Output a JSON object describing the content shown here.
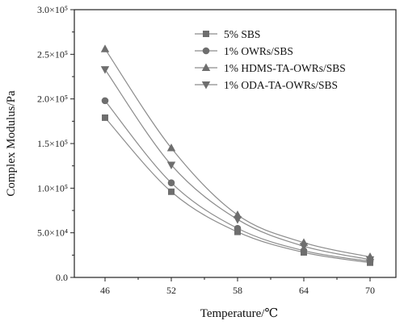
{
  "chart_data": {
    "type": "line",
    "title": "",
    "xlabel": "Temperature/℃",
    "ylabel": "Complex Modulus/Pa",
    "categories": [
      46,
      52,
      58,
      64,
      70
    ],
    "x_tick_labels": [
      "46",
      "52",
      "58",
      "64",
      "70"
    ],
    "ylim": [
      0,
      300000
    ],
    "y_ticks": [
      0,
      50000,
      100000,
      150000,
      200000,
      250000,
      300000
    ],
    "y_tick_labels": [
      "0.0",
      "5.0×10⁴",
      "1.0×10⁵",
      "1.5×10⁵",
      "2.0×10⁵",
      "2.5×10⁵",
      "3.0×10⁵"
    ],
    "grid": false,
    "legend_position": "top-right",
    "series": [
      {
        "name": "5% SBS",
        "marker": "square",
        "values": [
          179000,
          96000,
          51000,
          28000,
          16500
        ]
      },
      {
        "name": "1% OWRs/SBS",
        "marker": "circle",
        "values": [
          198000,
          106000,
          55000,
          30000,
          18000
        ]
      },
      {
        "name": "1% HDMS-TA-OWRs/SBS",
        "marker": "triangle-up",
        "values": [
          256000,
          145000,
          70000,
          39000,
          23000
        ]
      },
      {
        "name": "1% ODA-TA-OWRs/SBS",
        "marker": "triangle-down",
        "values": [
          233000,
          126000,
          65000,
          35000,
          20000
        ]
      }
    ],
    "colors": {
      "line": "#8c8c8c",
      "marker": "#6e6e6e",
      "axis": "#222222"
    }
  }
}
